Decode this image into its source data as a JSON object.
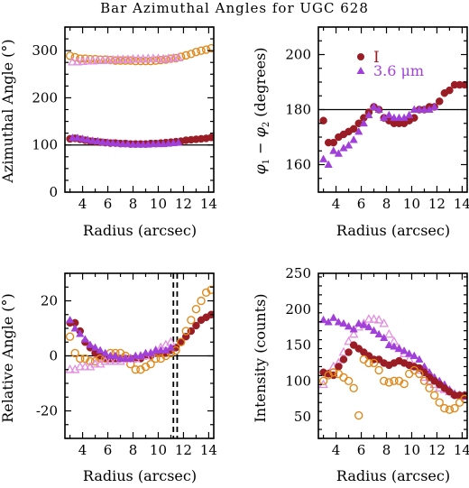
{
  "figure_title": "Bar Azimuthal Angles for UGC 628",
  "colors": {
    "series_filled": "#9a1c24",
    "series_open_circle": "#e08a1e",
    "series_open_triangle": "#e38ee0",
    "series_filled_triangle": "#a040d8",
    "frame": "#000000"
  },
  "chart_data": [
    {
      "id": "p1",
      "type": "scatter",
      "title": "",
      "xlabel": "Radius (arcsec)",
      "ylabel": "Azimuthal Angle (°)",
      "xlim": [
        2.6,
        14.4
      ],
      "ylim": [
        0,
        350
      ],
      "xticks": [
        4,
        6,
        8,
        10,
        12,
        14
      ],
      "yticks": [
        0,
        100,
        200,
        300
      ],
      "grid": false,
      "hlines": [
        100
      ],
      "series": [
        {
          "marker": "circle-open",
          "color": "#e08a1e",
          "x": [
            3.0,
            3.4,
            3.8,
            4.2,
            4.6,
            5.0,
            5.4,
            5.8,
            6.2,
            6.6,
            7.0,
            7.4,
            7.8,
            8.2,
            8.6,
            9.0,
            9.4,
            9.8,
            10.2,
            10.6,
            11.0,
            11.4,
            11.8,
            12.2,
            12.6,
            13.0,
            13.4,
            13.8,
            14.2
          ],
          "y": [
            289,
            286,
            283,
            283,
            282,
            282,
            281,
            281,
            280,
            279,
            279,
            279,
            279,
            278,
            278,
            278,
            278,
            279,
            280,
            281,
            283,
            284,
            287,
            290,
            293,
            297,
            300,
            302,
            305
          ]
        },
        {
          "marker": "triangle-open",
          "color": "#e38ee0",
          "x": [
            3.2,
            3.6,
            4.0,
            4.4,
            4.8,
            5.2,
            5.6,
            6.0,
            6.4,
            6.8,
            7.2,
            7.6,
            8.0,
            8.4,
            8.8,
            9.2,
            9.6,
            10.0,
            10.4,
            10.8,
            11.2,
            11.6
          ],
          "y": [
            276,
            276,
            277,
            278,
            278,
            279,
            279,
            280,
            280,
            281,
            281,
            281,
            282,
            282,
            282,
            283,
            283,
            283,
            282,
            283,
            284,
            285
          ]
        },
        {
          "marker": "circle-filled",
          "color": "#9a1c24",
          "x": [
            3.0,
            3.4,
            3.8,
            4.2,
            4.6,
            5.0,
            5.4,
            5.8,
            6.2,
            6.6,
            7.0,
            7.4,
            7.8,
            8.2,
            8.6,
            9.0,
            9.4,
            9.8,
            10.2,
            10.6,
            11.0,
            11.4,
            11.8,
            12.2,
            12.6,
            13.0,
            13.4,
            13.8,
            14.2
          ],
          "y": [
            113,
            114,
            112,
            110,
            108,
            107,
            106,
            105,
            104,
            104,
            103,
            103,
            102,
            102,
            102,
            102,
            103,
            103,
            104,
            105,
            106,
            107,
            108,
            110,
            111,
            112,
            113,
            114,
            116
          ]
        },
        {
          "marker": "triangle-filled",
          "color": "#a040d8",
          "x": [
            3.2,
            3.6,
            4.0,
            4.4,
            4.8,
            5.2,
            5.6,
            6.0,
            6.4,
            6.8,
            7.2,
            7.6,
            8.0,
            8.4,
            8.8,
            9.2,
            9.6,
            10.0,
            10.4,
            10.8,
            11.2,
            11.6
          ],
          "y": [
            115,
            115,
            113,
            111,
            109,
            108,
            106,
            105,
            104,
            103,
            102,
            102,
            101,
            101,
            101,
            101,
            102,
            102,
            102,
            103,
            104,
            105
          ]
        }
      ]
    },
    {
      "id": "p2",
      "type": "scatter",
      "title": "",
      "xlabel": "Radius (arcsec)",
      "ylabel": "φ1 − φ2 (degrees)",
      "xlim": [
        2.6,
        14.4
      ],
      "ylim": [
        150,
        210
      ],
      "xticks": [
        4,
        6,
        8,
        10,
        12,
        14
      ],
      "yticks": [
        160,
        180,
        200
      ],
      "grid": false,
      "hlines": [
        180
      ],
      "legend": {
        "placement": "top-right",
        "entries": [
          "I",
          "3.6 μm"
        ]
      },
      "series": [
        {
          "name": "I",
          "marker": "circle-filled",
          "color": "#9a1c24",
          "x": [
            3.0,
            3.4,
            3.8,
            4.2,
            4.6,
            5.0,
            5.4,
            5.8,
            6.2,
            6.6,
            7.0,
            7.4,
            7.8,
            8.2,
            8.6,
            9.0,
            9.4,
            9.8,
            10.2,
            10.6,
            11.0,
            11.4,
            11.8,
            12.2,
            12.6,
            13.0,
            13.4,
            13.8,
            14.2
          ],
          "y": [
            176,
            168,
            168,
            170,
            171,
            172,
            173,
            175,
            177,
            179,
            181,
            180,
            177,
            176,
            175,
            175,
            175,
            176,
            177,
            180,
            180,
            181,
            181,
            183,
            186,
            187,
            189,
            189,
            189
          ]
        },
        {
          "name": "3.6 μm",
          "marker": "triangle-filled",
          "color": "#a040d8",
          "x": [
            3.0,
            3.4,
            3.8,
            4.2,
            4.6,
            5.0,
            5.4,
            5.8,
            6.2,
            6.6,
            7.0,
            7.4,
            7.8,
            8.2,
            8.6,
            9.0,
            9.4,
            9.8,
            10.2,
            10.6,
            11.0,
            11.4,
            11.8
          ],
          "y": [
            162,
            160,
            165,
            164,
            166,
            167,
            169,
            172,
            175,
            178,
            181,
            180,
            177,
            178,
            177,
            177,
            177,
            178,
            180,
            180,
            180,
            180,
            181
          ]
        }
      ]
    },
    {
      "id": "p3",
      "type": "scatter",
      "title": "",
      "xlabel": "Radius (arcsec)",
      "ylabel": "Relative Angle (°)",
      "xlim": [
        2.6,
        14.4
      ],
      "ylim": [
        -30,
        30
      ],
      "xticks": [
        4,
        6,
        8,
        10,
        12,
        14
      ],
      "yticks": [
        -20,
        0,
        20
      ],
      "grid": false,
      "hlines": [
        0
      ],
      "vlines": [
        11.2,
        11.5
      ],
      "series": [
        {
          "marker": "circle-filled",
          "color": "#9a1c24",
          "x": [
            3.0,
            3.4,
            3.8,
            4.2,
            4.6,
            5.0,
            5.4,
            5.8,
            6.2,
            6.6,
            7.0,
            7.4,
            7.8,
            8.2,
            8.6,
            9.0,
            9.4,
            9.8,
            10.2,
            10.6,
            11.0,
            11.4,
            11.8,
            12.2,
            12.6,
            13.0,
            13.4,
            13.8,
            14.2
          ],
          "y": [
            12,
            12,
            9,
            5,
            3,
            1,
            0,
            -1,
            -1,
            -1,
            -1,
            -1,
            -1,
            -1,
            -1,
            0,
            0,
            1,
            1,
            1,
            2,
            3,
            5,
            7,
            9,
            11,
            13,
            14,
            15
          ]
        },
        {
          "marker": "circle-open",
          "color": "#e08a1e",
          "x": [
            3.0,
            3.4,
            3.8,
            4.2,
            4.6,
            5.0,
            5.4,
            5.8,
            6.2,
            6.6,
            7.0,
            7.4,
            7.8,
            8.2,
            8.6,
            9.0,
            9.4,
            9.8,
            10.2,
            10.6,
            11.0,
            11.4,
            11.8,
            12.2,
            12.6,
            13.0,
            13.4,
            13.8,
            14.2
          ],
          "y": [
            7,
            1,
            -1,
            -1,
            -2,
            -2,
            -1,
            -1,
            1,
            1,
            1,
            0,
            -3,
            -5,
            -5,
            -4,
            -3,
            -1,
            -1,
            0,
            1,
            2,
            5,
            9,
            13,
            17,
            20,
            23,
            24
          ]
        },
        {
          "marker": "triangle-open",
          "color": "#e38ee0",
          "x": [
            3.0,
            3.4,
            3.8,
            4.2,
            4.6,
            5.0,
            5.4,
            5.8,
            6.2,
            6.6,
            7.0,
            7.4,
            7.8,
            8.2,
            8.6,
            9.0,
            9.4,
            9.8,
            10.2,
            10.6,
            11.0
          ],
          "y": [
            -5,
            -5,
            -4,
            -4,
            -4,
            -3,
            -3,
            -2,
            -2,
            -2,
            -2,
            -1,
            -1,
            -1,
            0,
            0,
            1,
            2,
            3,
            4,
            5
          ]
        },
        {
          "marker": "triangle-filled",
          "color": "#a040d8",
          "x": [
            3.0,
            3.4,
            3.8,
            4.2,
            4.6,
            5.0,
            5.4,
            5.8,
            6.2,
            6.6,
            7.0,
            7.4,
            7.8,
            8.2,
            8.6,
            9.0,
            9.4,
            9.8,
            10.2,
            10.6,
            11.0
          ],
          "y": [
            13,
            10,
            8,
            6,
            4,
            3,
            2,
            1,
            0,
            0,
            -1,
            -1,
            -1,
            0,
            0,
            1,
            1,
            2,
            2,
            2,
            3
          ]
        }
      ]
    },
    {
      "id": "p4",
      "type": "scatter",
      "title": "",
      "xlabel": "Radius (arcsec)",
      "ylabel": "Intensity (counts)",
      "xlim": [
        2.6,
        14.4
      ],
      "ylim": [
        20,
        250
      ],
      "xticks": [
        4,
        6,
        8,
        10,
        12,
        14
      ],
      "yticks": [
        50,
        100,
        150,
        200,
        250
      ],
      "grid": false,
      "series": [
        {
          "marker": "triangle-open",
          "color": "#e38ee0",
          "x": [
            3.0,
            3.4,
            3.8,
            4.2,
            4.6,
            5.0,
            5.4,
            5.8,
            6.2,
            6.6,
            7.0,
            7.4,
            7.8,
            8.2,
            8.6,
            9.0,
            9.4,
            9.8,
            10.2,
            10.6,
            11.0,
            11.4,
            11.8,
            12.2,
            12.6,
            13.0,
            13.4,
            13.8,
            14.2
          ],
          "y": [
            95,
            110,
            120,
            125,
            140,
            155,
            165,
            175,
            180,
            186,
            186,
            185,
            180,
            165,
            155,
            145,
            138,
            130,
            120,
            115,
            105,
            100,
            95,
            90,
            88,
            85,
            82,
            80,
            80
          ]
        },
        {
          "marker": "triangle-filled",
          "color": "#a040d8",
          "x": [
            3.0,
            3.4,
            3.8,
            4.2,
            4.6,
            5.0,
            5.4,
            5.8,
            6.2,
            6.6,
            7.0,
            7.4,
            7.8,
            8.2,
            8.6,
            9.0,
            9.4,
            9.8,
            10.2,
            10.6,
            11.0,
            11.4,
            11.8,
            12.2,
            12.6,
            13.0,
            13.4,
            13.8,
            14.2
          ],
          "y": [
            185,
            182,
            188,
            182,
            180,
            176,
            172,
            180,
            178,
            175,
            170,
            165,
            160,
            150,
            148,
            145,
            142,
            138,
            135,
            130,
            120,
            112,
            105,
            100,
            95,
            88,
            82,
            80,
            78
          ]
        },
        {
          "marker": "circle-filled",
          "color": "#9a1c24",
          "x": [
            3.0,
            3.4,
            3.8,
            4.2,
            4.6,
            5.0,
            5.4,
            5.8,
            6.2,
            6.6,
            7.0,
            7.4,
            7.8,
            8.2,
            8.6,
            9.0,
            9.4,
            9.8,
            10.2,
            10.6,
            11.0,
            11.4,
            11.8,
            12.2,
            12.6,
            13.0,
            13.4,
            13.8,
            14.2
          ],
          "y": [
            112,
            110,
            108,
            120,
            130,
            140,
            150,
            145,
            140,
            135,
            130,
            130,
            125,
            122,
            125,
            128,
            125,
            122,
            120,
            118,
            112,
            105,
            100,
            95,
            90,
            85,
            80,
            80,
            80
          ]
        },
        {
          "marker": "circle-open",
          "color": "#e08a1e",
          "x": [
            3.0,
            3.4,
            3.8,
            4.2,
            4.6,
            5.0,
            5.4,
            5.8,
            6.2,
            6.6,
            7.0,
            7.4,
            7.8,
            8.2,
            8.6,
            9.0,
            9.4,
            9.8,
            10.2,
            10.6,
            11.0,
            11.4,
            11.8,
            12.2,
            12.6,
            13.0,
            13.4,
            13.8,
            14.2
          ],
          "y": [
            100,
            108,
            112,
            110,
            105,
            100,
            90,
            52,
            130,
            125,
            125,
            115,
            100,
            98,
            100,
            100,
            96,
            110,
            115,
            110,
            100,
            90,
            80,
            70,
            62,
            60,
            62,
            70,
            75
          ]
        }
      ]
    }
  ]
}
